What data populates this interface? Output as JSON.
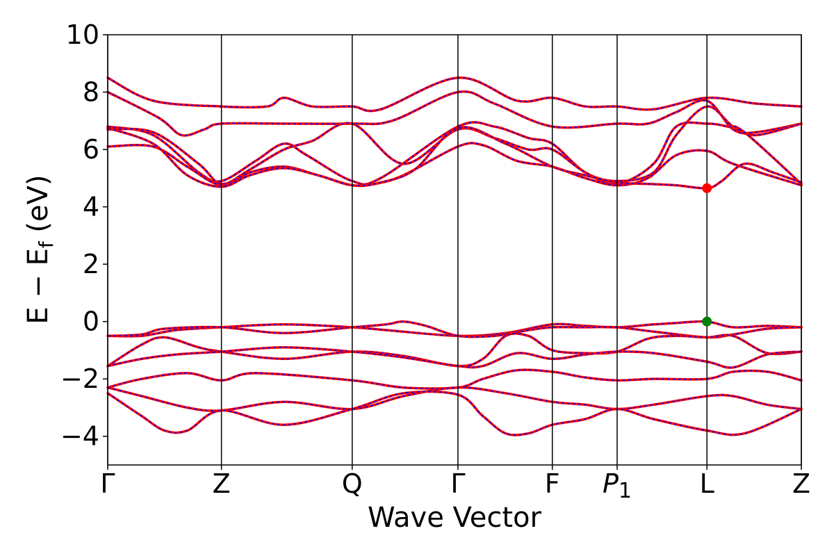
{
  "chart_data": {
    "type": "line",
    "xlabel": "Wave Vector",
    "ylabel_main": "E − E",
    "ylabel_sub": "f",
    "ylabel_unit": " (eV)",
    "ylim": [
      -5,
      10
    ],
    "yticks": [
      -4,
      -2,
      0,
      2,
      4,
      6,
      8,
      10
    ],
    "ytick_labels": [
      "−4",
      "−2",
      "0",
      "2",
      "4",
      "6",
      "8",
      "10"
    ],
    "xlim": [
      0,
      6.1
    ],
    "kpoints": [
      {
        "x": 0.0,
        "label": "Γ",
        "sub": ""
      },
      {
        "x": 1.0,
        "label": "Z",
        "sub": ""
      },
      {
        "x": 2.15,
        "label": "Q",
        "sub": ""
      },
      {
        "x": 3.08,
        "label": "Γ",
        "sub": ""
      },
      {
        "x": 3.91,
        "label": "F",
        "sub": ""
      },
      {
        "x": 4.48,
        "label": "P",
        "sub": "1"
      },
      {
        "x": 5.27,
        "label": "L",
        "sub": ""
      },
      {
        "x": 6.1,
        "label": "Z",
        "sub": ""
      }
    ],
    "line_colors": {
      "primary": "#ff0000",
      "overlay": "#0000ff"
    },
    "grid": false,
    "bands": [
      {
        "points": [
          [
            0,
            8.5
          ],
          [
            0.4,
            7.7
          ],
          [
            1.0,
            7.5
          ],
          [
            1.4,
            7.5
          ],
          [
            1.55,
            7.8
          ],
          [
            1.8,
            7.5
          ],
          [
            2.15,
            7.5
          ],
          [
            2.4,
            7.4
          ],
          [
            3.08,
            8.5
          ],
          [
            3.6,
            7.7
          ],
          [
            3.91,
            7.8
          ],
          [
            4.2,
            7.5
          ],
          [
            4.48,
            7.5
          ],
          [
            4.8,
            7.4
          ],
          [
            5.27,
            7.8
          ],
          [
            5.7,
            7.6
          ],
          [
            6.1,
            7.5
          ]
        ]
      },
      {
        "points": [
          [
            0,
            8.0
          ],
          [
            0.45,
            7.1
          ],
          [
            0.65,
            6.5
          ],
          [
            0.85,
            6.7
          ],
          [
            1.0,
            6.9
          ],
          [
            1.55,
            6.9
          ],
          [
            2.15,
            6.9
          ],
          [
            2.5,
            7.0
          ],
          [
            3.08,
            8.0
          ],
          [
            3.4,
            7.6
          ],
          [
            3.91,
            6.8
          ],
          [
            4.48,
            6.9
          ],
          [
            4.75,
            6.9
          ],
          [
            5.0,
            7.3
          ],
          [
            5.27,
            7.7
          ],
          [
            5.5,
            6.7
          ],
          [
            5.7,
            6.6
          ],
          [
            6.1,
            6.9
          ]
        ]
      },
      {
        "points": [
          [
            0,
            6.8
          ],
          [
            0.4,
            6.5
          ],
          [
            0.8,
            5.2
          ],
          [
            1.0,
            4.9
          ],
          [
            1.3,
            5.6
          ],
          [
            1.55,
            6.2
          ],
          [
            1.75,
            5.8
          ],
          [
            2.15,
            4.9
          ],
          [
            2.4,
            5.0
          ],
          [
            3.08,
            6.8
          ],
          [
            3.4,
            6.8
          ],
          [
            3.7,
            6.4
          ],
          [
            3.91,
            6.2
          ],
          [
            4.2,
            5.2
          ],
          [
            4.48,
            4.9
          ],
          [
            4.8,
            5.2
          ],
          [
            5.0,
            6.5
          ],
          [
            5.27,
            7.5
          ],
          [
            5.5,
            6.8
          ],
          [
            5.7,
            6.5
          ],
          [
            6.1,
            6.9
          ]
        ]
      },
      {
        "points": [
          [
            0,
            6.7
          ],
          [
            0.4,
            6.6
          ],
          [
            0.8,
            5.5
          ],
          [
            1.0,
            4.8
          ],
          [
            1.25,
            5.3
          ],
          [
            1.55,
            6.0
          ],
          [
            1.8,
            6.3
          ],
          [
            2.15,
            6.9
          ],
          [
            2.6,
            5.5
          ],
          [
            3.08,
            6.7
          ],
          [
            3.4,
            6.4
          ],
          [
            3.7,
            6.0
          ],
          [
            3.91,
            6.0
          ],
          [
            4.2,
            5.2
          ],
          [
            4.48,
            4.8
          ],
          [
            4.8,
            5.5
          ],
          [
            5.0,
            6.8
          ],
          [
            5.27,
            6.9
          ],
          [
            5.45,
            6.8
          ],
          [
            5.6,
            6.6
          ],
          [
            6.1,
            4.8
          ]
        ]
      },
      {
        "points": [
          [
            0,
            6.1
          ],
          [
            0.4,
            6.1
          ],
          [
            0.7,
            5.4
          ],
          [
            1.0,
            4.75
          ],
          [
            1.25,
            5.2
          ],
          [
            1.55,
            5.4
          ],
          [
            1.85,
            5.1
          ],
          [
            2.15,
            4.75
          ],
          [
            2.35,
            4.8
          ],
          [
            2.6,
            5.1
          ],
          [
            3.08,
            6.1
          ],
          [
            3.3,
            6.15
          ],
          [
            3.6,
            5.6
          ],
          [
            3.91,
            5.4
          ],
          [
            4.2,
            5.0
          ],
          [
            4.48,
            4.75
          ],
          [
            4.75,
            5.0
          ],
          [
            5.0,
            5.8
          ],
          [
            5.27,
            5.95
          ],
          [
            5.5,
            5.5
          ],
          [
            6.1,
            4.75
          ]
        ]
      },
      {
        "points": [
          [
            0,
            6.75
          ],
          [
            0.4,
            6.2
          ],
          [
            0.7,
            5.1
          ],
          [
            1.0,
            4.7
          ],
          [
            1.25,
            5.1
          ],
          [
            1.55,
            5.35
          ],
          [
            1.85,
            5.1
          ],
          [
            2.15,
            4.75
          ],
          [
            2.4,
            4.85
          ],
          [
            2.7,
            5.3
          ],
          [
            3.08,
            6.75
          ],
          [
            3.5,
            6.2
          ],
          [
            3.91,
            5.4
          ],
          [
            4.2,
            5.1
          ],
          [
            4.48,
            4.85
          ],
          [
            4.75,
            4.8
          ],
          [
            5.0,
            4.75
          ],
          [
            5.27,
            4.65
          ],
          [
            5.4,
            4.9
          ],
          [
            5.6,
            5.5
          ],
          [
            5.85,
            5.2
          ],
          [
            6.1,
            4.85
          ]
        ]
      },
      {
        "points": [
          [
            0,
            -0.5
          ],
          [
            0.3,
            -0.5
          ],
          [
            0.6,
            -0.3
          ],
          [
            1.0,
            -0.2
          ],
          [
            1.55,
            -0.1
          ],
          [
            2.15,
            -0.2
          ],
          [
            2.45,
            -0.3
          ],
          [
            3.08,
            -0.5
          ],
          [
            3.5,
            -0.4
          ],
          [
            3.91,
            -0.1
          ],
          [
            4.2,
            -0.15
          ],
          [
            4.48,
            -0.2
          ],
          [
            4.8,
            -0.1
          ],
          [
            5.0,
            -0.05
          ],
          [
            5.27,
            0.0
          ],
          [
            5.5,
            -0.2
          ],
          [
            5.8,
            -0.15
          ],
          [
            6.1,
            -0.2
          ]
        ]
      },
      {
        "points": [
          [
            0,
            -0.5
          ],
          [
            0.3,
            -0.45
          ],
          [
            0.5,
            -0.25
          ],
          [
            1.0,
            -0.2
          ],
          [
            1.55,
            -0.4
          ],
          [
            2.15,
            -0.2
          ],
          [
            2.45,
            -0.1
          ],
          [
            2.6,
            0.0
          ],
          [
            2.8,
            -0.15
          ],
          [
            3.08,
            -0.5
          ],
          [
            3.4,
            -0.5
          ],
          [
            3.7,
            -0.3
          ],
          [
            3.91,
            -0.2
          ],
          [
            4.2,
            -0.2
          ],
          [
            4.48,
            -0.2
          ],
          [
            4.8,
            -0.35
          ],
          [
            5.27,
            -0.55
          ],
          [
            5.5,
            -0.45
          ],
          [
            5.8,
            -0.25
          ],
          [
            6.1,
            -0.2
          ]
        ]
      },
      {
        "points": [
          [
            0,
            -1.55
          ],
          [
            0.3,
            -0.8
          ],
          [
            0.5,
            -0.55
          ],
          [
            0.8,
            -0.9
          ],
          [
            1.0,
            -1.05
          ],
          [
            1.55,
            -1.3
          ],
          [
            2.15,
            -1.05
          ],
          [
            2.6,
            -1.2
          ],
          [
            3.08,
            -1.55
          ],
          [
            3.3,
            -1.3
          ],
          [
            3.5,
            -0.5
          ],
          [
            3.7,
            -0.5
          ],
          [
            3.91,
            -1.0
          ],
          [
            4.2,
            -1.1
          ],
          [
            4.48,
            -1.05
          ],
          [
            4.75,
            -0.6
          ],
          [
            5.0,
            -0.5
          ],
          [
            5.27,
            -0.55
          ],
          [
            5.5,
            -0.5
          ],
          [
            5.8,
            -1.1
          ],
          [
            6.1,
            -1.05
          ]
        ]
      },
      {
        "points": [
          [
            0,
            -1.55
          ],
          [
            0.3,
            -1.3
          ],
          [
            0.6,
            -1.15
          ],
          [
            1.0,
            -1.05
          ],
          [
            1.55,
            -0.9
          ],
          [
            2.15,
            -1.05
          ],
          [
            2.6,
            -1.25
          ],
          [
            3.08,
            -1.55
          ],
          [
            3.3,
            -1.55
          ],
          [
            3.6,
            -1.1
          ],
          [
            3.91,
            -1.3
          ],
          [
            4.2,
            -1.15
          ],
          [
            4.48,
            -1.05
          ],
          [
            4.8,
            -1.1
          ],
          [
            5.27,
            -1.4
          ],
          [
            5.5,
            -1.6
          ],
          [
            5.8,
            -1.15
          ],
          [
            6.1,
            -1.05
          ]
        ]
      },
      {
        "points": [
          [
            0,
            -2.3
          ],
          [
            0.3,
            -2.0
          ],
          [
            0.7,
            -1.8
          ],
          [
            1.0,
            -2.05
          ],
          [
            1.3,
            -1.8
          ],
          [
            2.15,
            -2.05
          ],
          [
            2.6,
            -2.3
          ],
          [
            3.08,
            -2.3
          ],
          [
            3.3,
            -2.0
          ],
          [
            3.6,
            -1.7
          ],
          [
            3.91,
            -1.75
          ],
          [
            4.2,
            -1.95
          ],
          [
            4.48,
            -2.05
          ],
          [
            4.8,
            -2.0
          ],
          [
            5.27,
            -2.0
          ],
          [
            5.5,
            -1.75
          ],
          [
            5.8,
            -1.75
          ],
          [
            6.1,
            -2.05
          ]
        ]
      },
      {
        "points": [
          [
            0,
            -2.3
          ],
          [
            0.3,
            -2.6
          ],
          [
            0.7,
            -3.0
          ],
          [
            1.0,
            -3.1
          ],
          [
            1.55,
            -2.8
          ],
          [
            2.15,
            -3.05
          ],
          [
            2.6,
            -2.6
          ],
          [
            3.08,
            -2.3
          ],
          [
            3.5,
            -2.5
          ],
          [
            3.91,
            -2.8
          ],
          [
            4.2,
            -2.9
          ],
          [
            4.48,
            -3.05
          ],
          [
            4.8,
            -2.9
          ],
          [
            5.27,
            -2.6
          ],
          [
            5.5,
            -2.6
          ],
          [
            5.8,
            -2.9
          ],
          [
            6.1,
            -3.05
          ]
        ]
      },
      {
        "points": [
          [
            0,
            -2.5
          ],
          [
            0.3,
            -3.3
          ],
          [
            0.5,
            -3.8
          ],
          [
            0.7,
            -3.8
          ],
          [
            1.0,
            -3.1
          ],
          [
            1.55,
            -3.6
          ],
          [
            2.15,
            -3.05
          ],
          [
            2.6,
            -2.5
          ],
          [
            3.08,
            -2.55
          ],
          [
            3.3,
            -3.3
          ],
          [
            3.5,
            -3.9
          ],
          [
            3.7,
            -3.9
          ],
          [
            3.91,
            -3.6
          ],
          [
            4.2,
            -3.4
          ],
          [
            4.48,
            -3.05
          ],
          [
            4.8,
            -3.4
          ],
          [
            5.27,
            -3.8
          ],
          [
            5.6,
            -3.9
          ],
          [
            6.1,
            -3.05
          ]
        ]
      }
    ],
    "markers": [
      {
        "x": 5.27,
        "y": 4.65,
        "color": "#ff0000"
      },
      {
        "x": 5.27,
        "y": 0.0,
        "color": "#008000"
      }
    ]
  }
}
